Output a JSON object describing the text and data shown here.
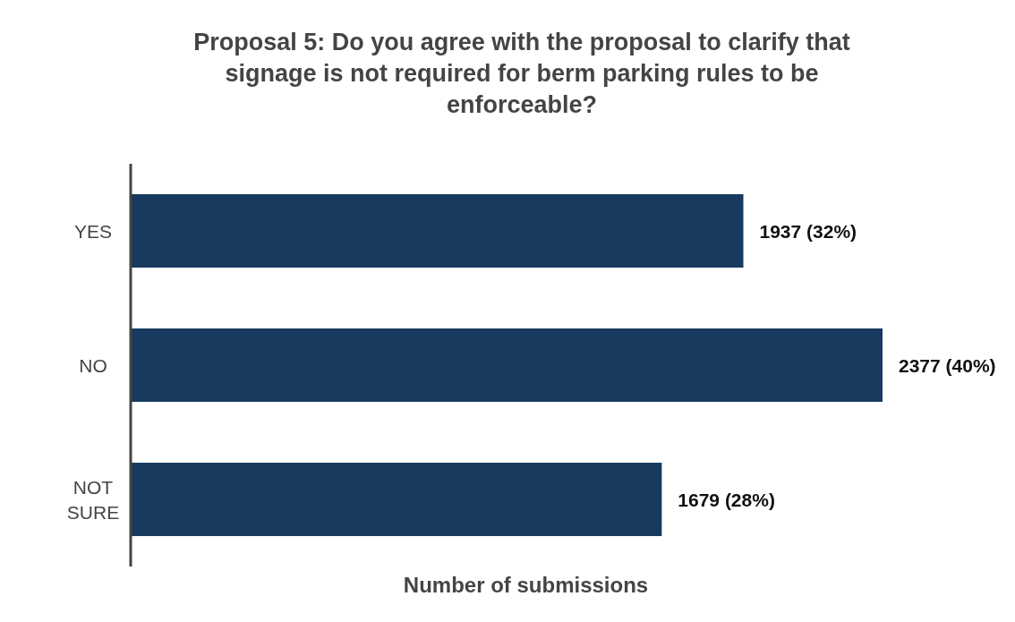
{
  "chart_data": {
    "type": "bar",
    "orientation": "horizontal",
    "title": "Proposal 5: Do you agree with the proposal to clarify that signage is not required for berm parking rules to be enforceable?",
    "xlabel": "Number of submissions",
    "categories": [
      "YES",
      "NO",
      "NOT SURE"
    ],
    "values": [
      1937,
      2377,
      1679
    ],
    "value_labels": [
      "1937 (32%)",
      "2377 (40%)",
      "1679 (28%)"
    ],
    "color": "#173a5e"
  }
}
